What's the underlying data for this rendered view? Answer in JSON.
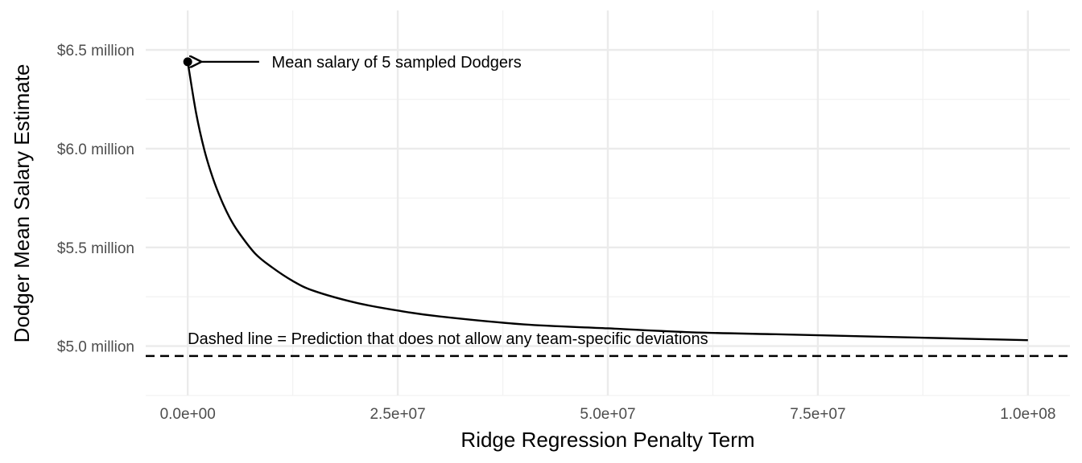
{
  "chart_data": {
    "type": "line",
    "title": "",
    "xlabel": "Ridge Regression Penalty Term",
    "ylabel": "Dodger Mean Salary Estimate",
    "xlim": [
      -5000000,
      105000000
    ],
    "ylim": [
      4750000,
      6700000
    ],
    "x_ticks": [
      {
        "value": 0,
        "label": "0.0e+00"
      },
      {
        "value": 25000000,
        "label": "2.5e+07"
      },
      {
        "value": 50000000,
        "label": "5.0e+07"
      },
      {
        "value": 75000000,
        "label": "7.5e+07"
      },
      {
        "value": 100000000,
        "label": "1.0e+08"
      }
    ],
    "y_ticks": [
      {
        "value": 5000000,
        "label": "$5.0 million"
      },
      {
        "value": 5500000,
        "label": "$5.5 million"
      },
      {
        "value": 6000000,
        "label": "$6.0 million"
      },
      {
        "value": 6500000,
        "label": "$6.5 million"
      }
    ],
    "grid": true,
    "legend": "none",
    "series": [
      {
        "style": "solid",
        "color": "#000000",
        "x": [
          0,
          1000000,
          2000000,
          3000000,
          4000000,
          5000000,
          6000000,
          8000000,
          10000000,
          12500000,
          15000000,
          20000000,
          25000000,
          30000000,
          40000000,
          50000000,
          60000000,
          70000000,
          80000000,
          90000000,
          100000000
        ],
        "y": [
          6440000,
          6180000,
          5990000,
          5850000,
          5740000,
          5650000,
          5580000,
          5470000,
          5400000,
          5330000,
          5280000,
          5220000,
          5180000,
          5150000,
          5110000,
          5090000,
          5070000,
          5060000,
          5050000,
          5040000,
          5030000
        ]
      }
    ],
    "reference_line": {
      "y": 4950000,
      "style": "dashed",
      "color": "#000000"
    },
    "point": {
      "x": 0,
      "y": 6440000
    },
    "annotations": [
      {
        "text": "Mean salary of 5 sampled Dodgers",
        "x": 10000000,
        "y": 6440000,
        "arrow_from_x": 8500000,
        "arrow_to_x": 1500000
      },
      {
        "text": "Dashed line = Prediction that does not allow any team-specific deviations",
        "x": 0,
        "y": 5040000
      }
    ]
  }
}
